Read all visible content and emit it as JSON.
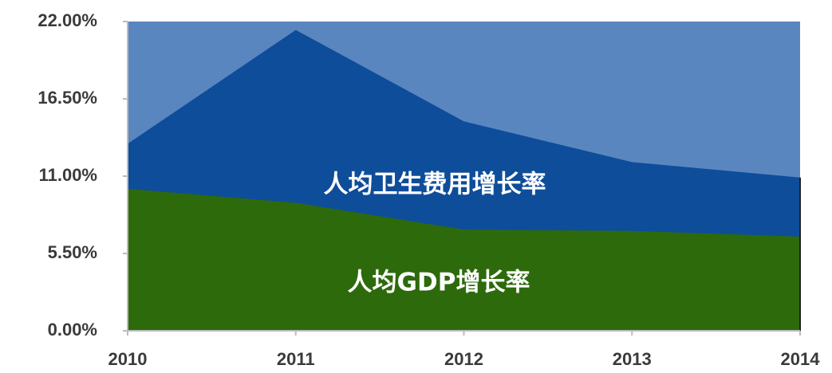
{
  "chart_data": {
    "type": "area",
    "categories": [
      "2010",
      "2011",
      "2012",
      "2013",
      "2014"
    ],
    "series": [
      {
        "name": "人均卫生费用增长率",
        "color": "#0e4d9a",
        "values": [
          13.3,
          21.4,
          14.9,
          12.0,
          10.9
        ]
      },
      {
        "name": "人均GDP增长率",
        "color": "#2d6a0c",
        "values": [
          10.1,
          9.1,
          7.2,
          7.1,
          6.7
        ]
      }
    ],
    "background": "#5a86c0",
    "ylim": [
      0,
      22
    ],
    "yticks": [
      {
        "value": 0,
        "label": "0.00%"
      },
      {
        "value": 5.5,
        "label": "5.50%"
      },
      {
        "value": 11,
        "label": "11.00%"
      },
      {
        "value": 16.5,
        "label": "16.50%"
      },
      {
        "value": 22,
        "label": "22.00%"
      }
    ]
  }
}
